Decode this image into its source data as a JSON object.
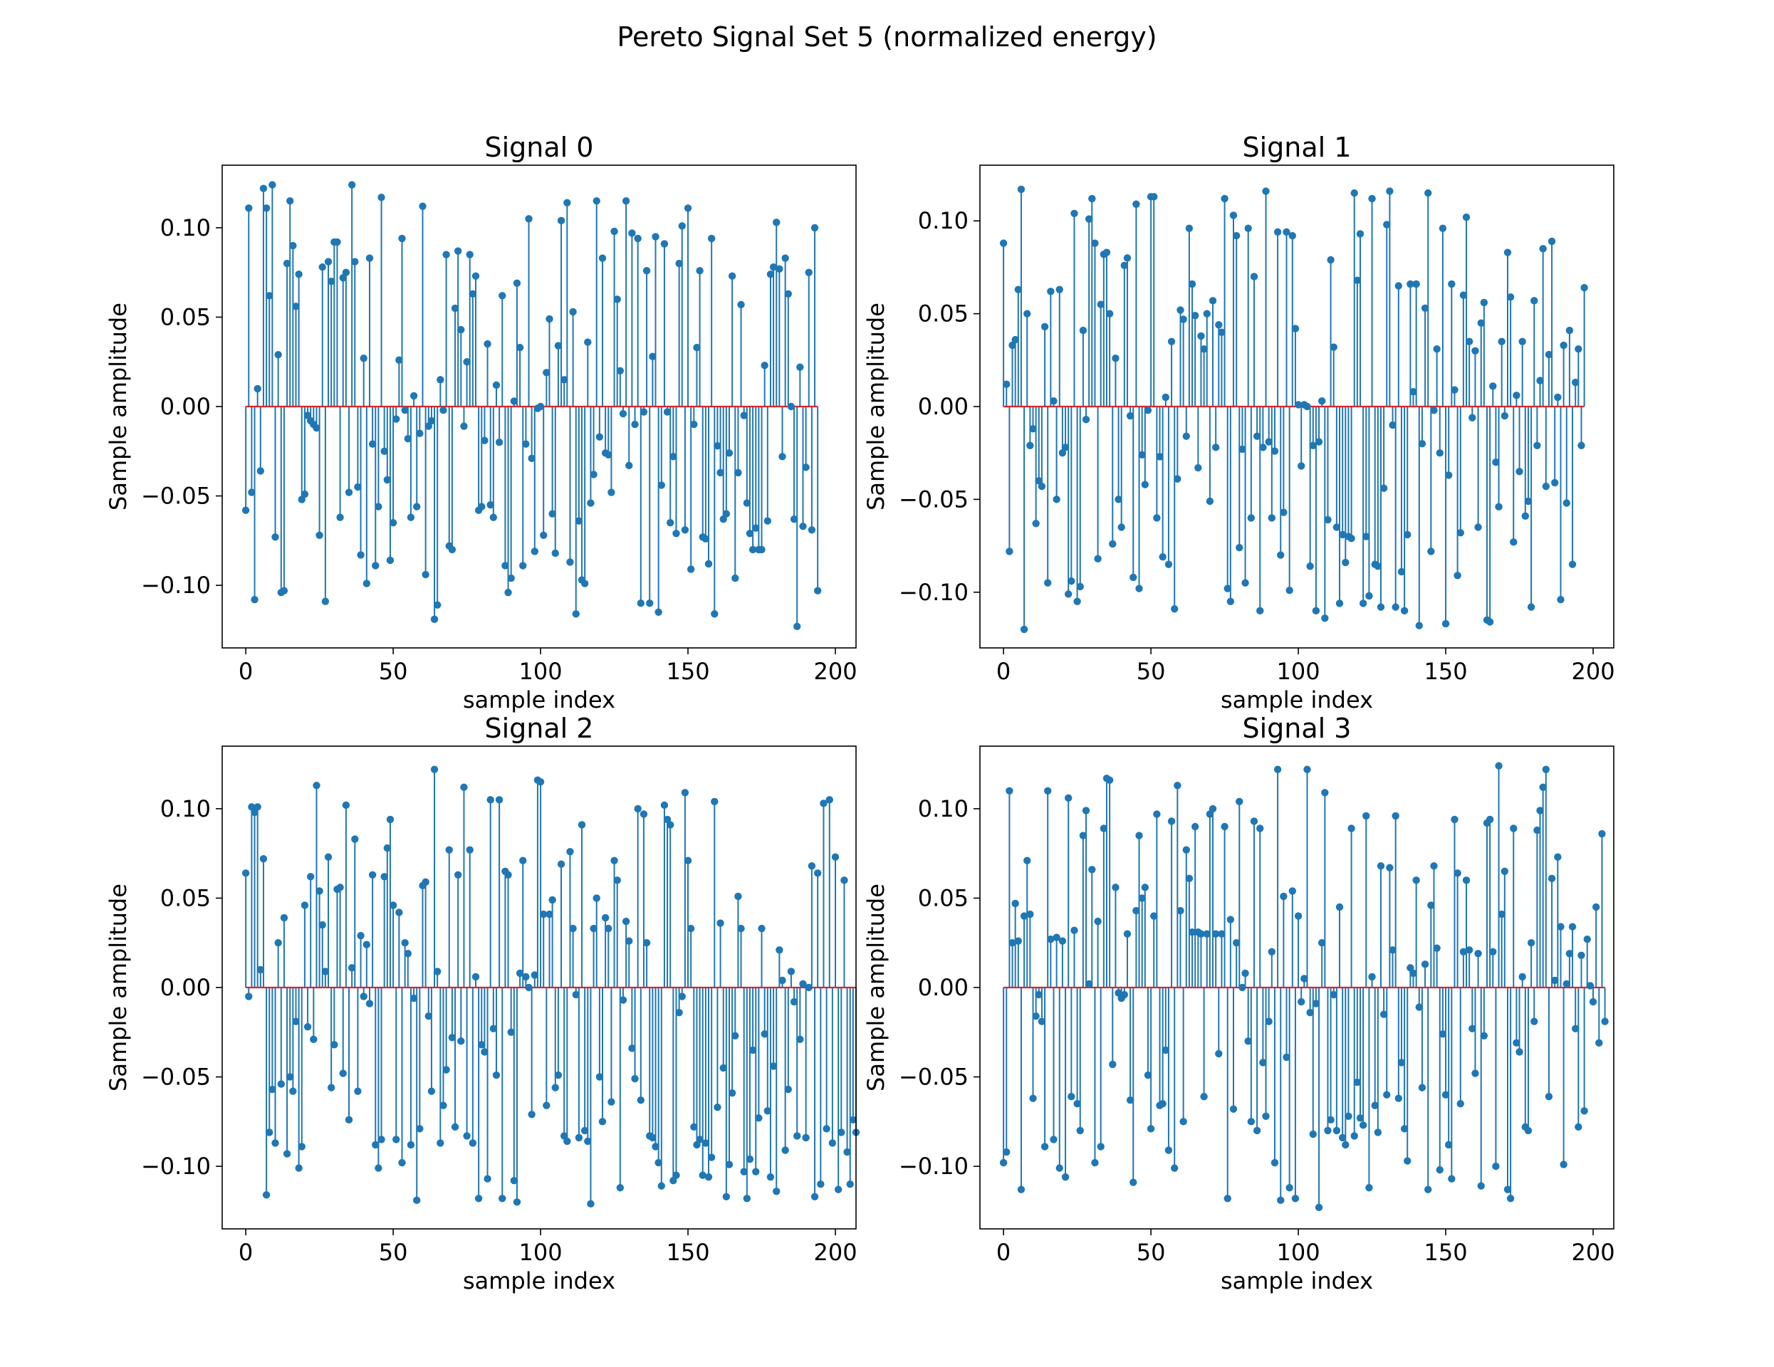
{
  "figure": {
    "suptitle": "Pereto Signal Set 5 (normalized energy)"
  },
  "colors": {
    "stem": "#1f77b4",
    "baseline": "#d62728",
    "frame": "#000000"
  },
  "chart_data": [
    {
      "type": "stem",
      "title": "Signal 0",
      "xlabel": "sample index",
      "ylabel": "Sample amplitude",
      "xlim": [
        -8,
        207
      ],
      "ylim": [
        -0.135,
        0.135
      ],
      "xticks": [
        0,
        50,
        100,
        150,
        200
      ],
      "xtick_labels": [
        "0",
        "50",
        "100",
        "150",
        "200"
      ],
      "yticks": [
        -0.1,
        -0.05,
        0.0,
        0.05,
        0.1
      ],
      "ytick_labels": [
        "−0.10",
        "−0.05",
        "0.00",
        "0.05",
        "0.10"
      ],
      "values": [
        -0.058,
        0.111,
        -0.048,
        -0.108,
        0.01,
        -0.036,
        0.122,
        0.111,
        0.062,
        0.124,
        -0.073,
        0.029,
        -0.104,
        -0.103,
        0.08,
        0.115,
        0.09,
        0.056,
        0.074,
        -0.052,
        -0.049,
        -0.005,
        -0.008,
        -0.01,
        -0.012,
        -0.072,
        0.078,
        -0.109,
        0.081,
        0.07,
        0.092,
        0.092,
        -0.062,
        0.072,
        0.075,
        -0.048,
        0.124,
        0.081,
        -0.045,
        -0.083,
        0.027,
        -0.099,
        0.083,
        -0.021,
        -0.089,
        -0.056,
        0.117,
        -0.025,
        -0.041,
        -0.086,
        -0.065,
        -0.007,
        0.026,
        0.094,
        -0.002,
        -0.018,
        -0.062,
        0.006,
        -0.056,
        -0.015,
        0.112,
        -0.094,
        -0.011,
        -0.008,
        -0.119,
        -0.111,
        0.015,
        -0.002,
        0.085,
        -0.078,
        -0.08,
        0.055,
        0.087,
        0.043,
        -0.011,
        0.025,
        0.085,
        0.063,
        0.073,
        -0.058,
        -0.056,
        -0.019,
        0.035,
        -0.055,
        -0.062,
        0.012,
        -0.02,
        0.062,
        -0.089,
        -0.104,
        -0.096,
        0.003,
        0.069,
        0.033,
        -0.089,
        -0.021,
        0.105,
        -0.029,
        -0.081,
        -0.001,
        0.0,
        -0.072,
        0.019,
        0.049,
        -0.06,
        -0.082,
        0.034,
        0.104,
        0.015,
        0.114,
        -0.087,
        0.053,
        -0.116,
        -0.064,
        -0.097,
        -0.099,
        0.036,
        -0.054,
        -0.038,
        0.115,
        -0.017,
        0.083,
        -0.026,
        -0.027,
        -0.048,
        0.098,
        0.06,
        0.02,
        -0.004,
        0.115,
        -0.033,
        0.097,
        -0.01,
        0.094,
        -0.11,
        -0.003,
        0.076,
        -0.11,
        0.028,
        0.095,
        -0.115,
        -0.044,
        0.091,
        -0.003,
        -0.065,
        -0.028,
        -0.071,
        0.08,
        0.101,
        -0.069,
        0.111,
        -0.091,
        -0.01,
        0.033,
        0.076,
        -0.073,
        -0.074,
        -0.088,
        0.094,
        -0.116,
        -0.022,
        -0.037,
        -0.063,
        -0.06,
        -0.026,
        0.073,
        -0.096,
        -0.037,
        0.057,
        -0.005,
        -0.054,
        -0.071,
        -0.08,
        -0.068,
        -0.08,
        -0.08,
        0.023,
        -0.064,
        0.074,
        0.078,
        0.103,
        0.077,
        -0.028,
        0.083,
        0.063,
        0.0,
        -0.063,
        -0.123,
        0.022,
        -0.067,
        -0.034,
        0.075,
        -0.069,
        0.1,
        -0.103
      ]
    },
    {
      "type": "stem",
      "title": "Signal 1",
      "xlabel": "sample index",
      "ylabel": "Sample amplitude",
      "xlim": [
        -8,
        207
      ],
      "ylim": [
        -0.13,
        0.13
      ],
      "xticks": [
        0,
        50,
        100,
        150,
        200
      ],
      "xtick_labels": [
        "0",
        "50",
        "100",
        "150",
        "200"
      ],
      "yticks": [
        -0.1,
        -0.05,
        0.0,
        0.05,
        0.1
      ],
      "ytick_labels": [
        "−0.10",
        "−0.05",
        "0.00",
        "0.05",
        "0.10"
      ],
      "values": [
        0.088,
        0.012,
        -0.078,
        0.033,
        0.036,
        0.063,
        0.117,
        -0.12,
        0.05,
        -0.021,
        -0.012,
        -0.063,
        -0.04,
        -0.043,
        0.043,
        -0.095,
        0.062,
        0.003,
        -0.05,
        0.063,
        -0.025,
        -0.022,
        -0.101,
        -0.094,
        0.104,
        -0.105,
        -0.097,
        0.041,
        -0.007,
        0.101,
        0.112,
        0.088,
        -0.082,
        0.055,
        0.082,
        0.083,
        0.05,
        -0.074,
        0.026,
        -0.05,
        -0.065,
        0.076,
        0.08,
        -0.005,
        -0.092,
        0.109,
        -0.098,
        -0.026,
        -0.042,
        -0.002,
        0.113,
        0.113,
        -0.06,
        -0.027,
        -0.081,
        0.005,
        -0.085,
        0.035,
        -0.109,
        -0.039,
        0.052,
        0.047,
        -0.016,
        0.096,
        0.066,
        0.049,
        -0.033,
        0.038,
        0.031,
        0.05,
        -0.051,
        0.057,
        -0.022,
        0.044,
        0.04,
        0.112,
        -0.098,
        -0.105,
        0.103,
        0.092,
        -0.076,
        -0.023,
        -0.095,
        0.096,
        -0.06,
        0.07,
        -0.016,
        -0.11,
        -0.022,
        0.116,
        -0.019,
        -0.06,
        -0.024,
        0.094,
        -0.08,
        -0.057,
        0.094,
        -0.099,
        0.092,
        0.042,
        0.001,
        -0.032,
        0.001,
        0.0,
        -0.086,
        -0.021,
        -0.11,
        -0.019,
        0.003,
        -0.114,
        -0.061,
        0.079,
        0.032,
        -0.065,
        -0.106,
        -0.069,
        -0.084,
        -0.07,
        -0.071,
        0.115,
        0.068,
        0.093,
        -0.106,
        -0.07,
        -0.102,
        0.112,
        -0.085,
        -0.086,
        -0.108,
        -0.044,
        0.098,
        0.116,
        -0.01,
        -0.108,
        0.065,
        -0.089,
        -0.11,
        -0.069,
        0.066,
        0.008,
        0.066,
        -0.118,
        -0.02,
        0.053,
        0.115,
        -0.078,
        -0.002,
        0.031,
        -0.025,
        0.096,
        -0.117,
        -0.037,
        0.066,
        0.009,
        -0.091,
        -0.068,
        0.06,
        0.102,
        0.035,
        -0.006,
        0.03,
        -0.065,
        0.045,
        0.056,
        -0.115,
        -0.116,
        0.011,
        -0.03,
        -0.054,
        0.035,
        -0.005,
        0.083,
        0.059,
        -0.073,
        0.006,
        -0.035,
        0.035,
        -0.059,
        -0.051,
        -0.108,
        0.057,
        -0.021,
        0.014,
        0.085,
        -0.043,
        0.028,
        0.089,
        -0.041,
        0.005,
        -0.104,
        0.033,
        -0.052,
        0.041,
        -0.085,
        0.013,
        0.031,
        -0.021,
        0.064
      ]
    },
    {
      "type": "stem",
      "title": "Signal 2",
      "xlabel": "sample index",
      "ylabel": "Sample amplitude",
      "xlim": [
        -8,
        207
      ],
      "ylim": [
        -0.135,
        0.135
      ],
      "xticks": [
        0,
        50,
        100,
        150,
        200
      ],
      "xtick_labels": [
        "0",
        "50",
        "100",
        "150",
        "200"
      ],
      "yticks": [
        -0.1,
        -0.05,
        0.0,
        0.05,
        0.1
      ],
      "ytick_labels": [
        "−0.10",
        "−0.05",
        "0.00",
        "0.05",
        "0.10"
      ],
      "values": [
        0.064,
        -0.005,
        0.101,
        0.098,
        0.101,
        0.01,
        0.072,
        -0.116,
        -0.081,
        -0.057,
        -0.087,
        0.025,
        -0.054,
        0.039,
        -0.093,
        -0.05,
        -0.058,
        -0.019,
        -0.101,
        -0.089,
        0.046,
        -0.022,
        0.062,
        -0.029,
        0.113,
        0.054,
        0.035,
        0.009,
        0.073,
        -0.056,
        -0.032,
        0.055,
        0.056,
        -0.048,
        0.102,
        -0.074,
        0.011,
        0.083,
        -0.058,
        0.029,
        -0.005,
        0.024,
        -0.009,
        0.063,
        -0.088,
        -0.101,
        -0.085,
        0.062,
        0.078,
        0.094,
        0.046,
        -0.085,
        0.042,
        -0.098,
        0.025,
        0.019,
        -0.088,
        -0.006,
        -0.119,
        -0.079,
        0.057,
        0.059,
        -0.016,
        -0.058,
        0.122,
        0.009,
        -0.087,
        -0.066,
        -0.046,
        0.077,
        -0.028,
        -0.078,
        0.063,
        -0.03,
        0.112,
        -0.083,
        0.077,
        -0.087,
        0.006,
        -0.118,
        -0.032,
        -0.036,
        -0.107,
        0.105,
        -0.023,
        -0.049,
        0.105,
        -0.118,
        0.065,
        0.063,
        -0.025,
        -0.108,
        -0.12,
        0.008,
        0.071,
        0.006,
        0.0,
        -0.071,
        0.007,
        0.116,
        0.115,
        0.041,
        -0.066,
        0.041,
        0.049,
        -0.056,
        -0.049,
        0.069,
        -0.083,
        -0.086,
        0.076,
        0.033,
        -0.004,
        -0.084,
        0.091,
        -0.08,
        -0.086,
        -0.121,
        0.033,
        0.05,
        -0.05,
        -0.075,
        0.039,
        0.033,
        -0.064,
        0.071,
        0.06,
        -0.112,
        -0.007,
        0.037,
        0.026,
        -0.034,
        -0.051,
        0.1,
        -0.063,
        0.097,
        0.025,
        -0.083,
        -0.084,
        -0.089,
        -0.098,
        -0.111,
        0.102,
        0.094,
        0.091,
        -0.108,
        -0.105,
        -0.014,
        -0.005,
        0.109,
        0.071,
        0.033,
        -0.078,
        -0.088,
        -0.085,
        -0.105,
        -0.087,
        -0.106,
        -0.095,
        0.104,
        -0.067,
        0.036,
        -0.045,
        -0.117,
        -0.099,
        -0.059,
        -0.027,
        0.051,
        0.033,
        -0.103,
        -0.118,
        -0.096,
        -0.035,
        -0.103,
        -0.073,
        0.033,
        -0.026,
        -0.069,
        -0.106,
        -0.044,
        -0.114,
        0.021,
        0.004,
        -0.091,
        -0.057,
        0.009,
        -0.008,
        -0.083,
        -0.029,
        0.002,
        -0.084,
        0.0,
        0.068,
        -0.117,
        0.064,
        -0.11,
        0.103,
        -0.079,
        0.105,
        -0.087,
        0.073,
        -0.113,
        -0.081,
        0.06,
        -0.092,
        -0.11,
        -0.074,
        -0.081
      ]
    },
    {
      "type": "stem",
      "title": "Signal 3",
      "xlabel": "sample index",
      "ylabel": "Sample amplitude",
      "xlim": [
        -8,
        207
      ],
      "ylim": [
        -0.135,
        0.135
      ],
      "xticks": [
        0,
        50,
        100,
        150,
        200
      ],
      "xtick_labels": [
        "0",
        "50",
        "100",
        "150",
        "200"
      ],
      "yticks": [
        -0.1,
        -0.05,
        0.0,
        0.05,
        0.1
      ],
      "ytick_labels": [
        "−0.10",
        "−0.05",
        "0.00",
        "0.05",
        "0.10"
      ],
      "values": [
        -0.098,
        -0.092,
        0.11,
        0.025,
        0.047,
        0.026,
        -0.113,
        0.04,
        0.071,
        0.041,
        -0.062,
        -0.016,
        -0.004,
        -0.019,
        -0.089,
        0.11,
        0.027,
        -0.085,
        0.028,
        -0.101,
        0.026,
        -0.106,
        0.106,
        -0.061,
        0.032,
        -0.065,
        -0.08,
        0.085,
        0.099,
        0.002,
        0.066,
        -0.098,
        0.037,
        -0.089,
        0.089,
        0.117,
        0.116,
        -0.043,
        0.056,
        -0.003,
        -0.006,
        -0.004,
        0.03,
        -0.063,
        -0.109,
        0.043,
        0.085,
        0.05,
        0.056,
        -0.049,
        -0.079,
        0.04,
        0.097,
        -0.066,
        -0.065,
        -0.035,
        -0.091,
        0.093,
        -0.101,
        0.113,
        0.043,
        -0.075,
        0.077,
        0.061,
        0.031,
        0.09,
        0.031,
        0.03,
        -0.061,
        0.03,
        0.097,
        0.1,
        0.03,
        -0.037,
        0.03,
        0.09,
        -0.118,
        0.038,
        -0.068,
        0.025,
        0.104,
        0.0,
        0.008,
        -0.03,
        -0.075,
        0.093,
        -0.08,
        0.089,
        -0.042,
        -0.072,
        -0.019,
        0.02,
        -0.098,
        0.122,
        -0.119,
        0.051,
        -0.039,
        -0.112,
        0.054,
        -0.118,
        0.04,
        -0.008,
        0.005,
        0.122,
        -0.014,
        -0.082,
        -0.009,
        -0.123,
        0.025,
        0.109,
        -0.08,
        -0.074,
        -0.004,
        -0.08,
        0.045,
        -0.084,
        -0.088,
        -0.072,
        0.089,
        -0.083,
        -0.053,
        -0.073,
        -0.077,
        0.096,
        -0.112,
        0.006,
        -0.066,
        -0.081,
        0.068,
        -0.015,
        -0.06,
        0.067,
        0.021,
        0.096,
        -0.062,
        -0.042,
        -0.079,
        -0.097,
        0.011,
        0.008,
        0.06,
        -0.011,
        -0.056,
        0.013,
        -0.113,
        0.046,
        0.068,
        0.022,
        -0.102,
        -0.026,
        -0.06,
        -0.088,
        -0.107,
        0.094,
        0.064,
        -0.065,
        0.02,
        0.06,
        0.021,
        -0.023,
        -0.048,
        0.019,
        -0.111,
        -0.027,
        0.092,
        0.094,
        0.02,
        -0.1,
        0.124,
        0.041,
        0.065,
        -0.113,
        -0.118,
        0.089,
        -0.031,
        -0.036,
        0.006,
        -0.078,
        -0.08,
        0.025,
        -0.019,
        0.088,
        0.099,
        0.112,
        0.122,
        -0.061,
        0.061,
        0.004,
        0.073,
        0.034,
        -0.099,
        0.002,
        0.019,
        0.034,
        -0.023,
        -0.078,
        0.018,
        -0.069,
        0.027,
        0.001,
        -0.008,
        0.045,
        -0.031,
        0.086,
        -0.019
      ]
    }
  ]
}
